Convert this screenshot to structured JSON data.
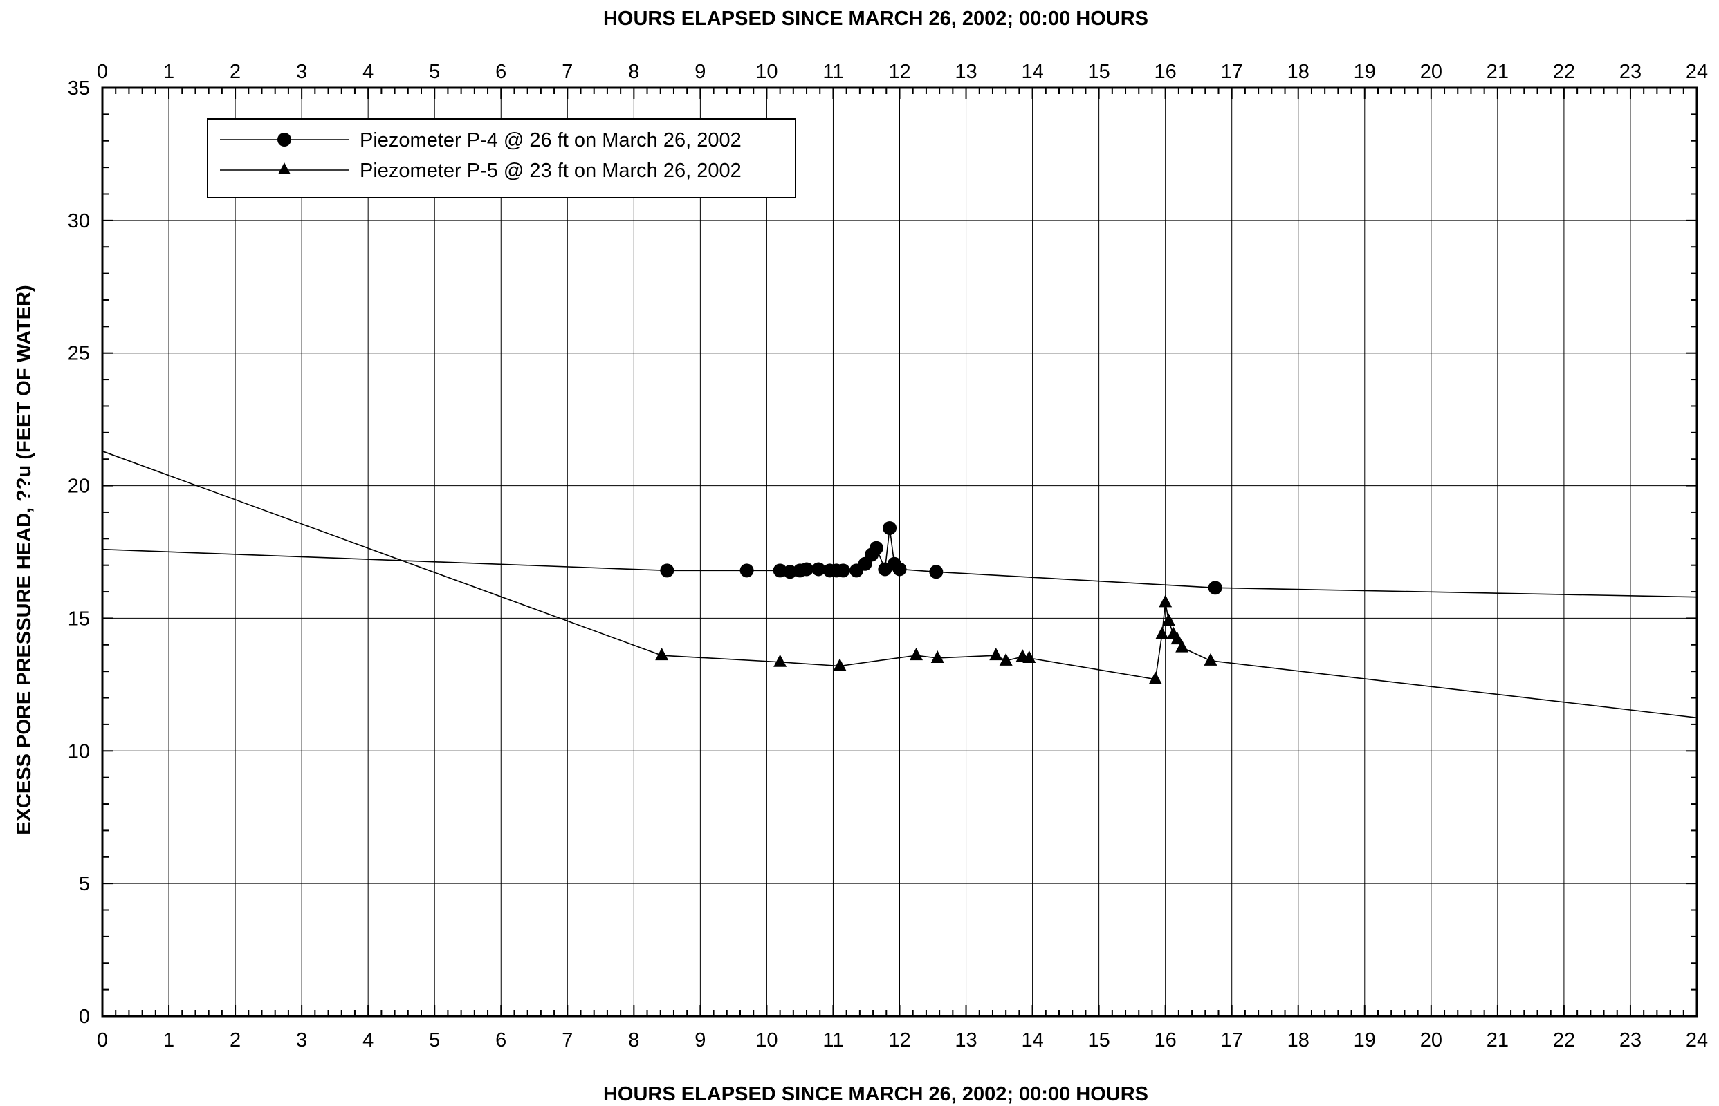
{
  "chart_data": {
    "type": "line",
    "top_xlabel": "HOURS ELAPSED SINCE MARCH 26, 2002; 00:00 HOURS",
    "xlabel": "HOURS ELAPSED SINCE MARCH 26, 2002; 00:00 HOURS",
    "ylabel": "EXCESS PORE PRESSURE HEAD, ??u (FEET OF WATER)",
    "xlim": [
      0,
      24
    ],
    "ylim": [
      0,
      35
    ],
    "x_ticks": [
      0,
      1,
      2,
      3,
      4,
      5,
      6,
      7,
      8,
      9,
      10,
      11,
      12,
      13,
      14,
      15,
      16,
      17,
      18,
      19,
      20,
      21,
      22,
      23,
      24
    ],
    "y_ticks": [
      0,
      5,
      10,
      15,
      20,
      25,
      30,
      35
    ],
    "grid": true,
    "legend_position": "top-left",
    "series": [
      {
        "name": "Piezometer P-4 @ 26 ft on March 26, 2002",
        "marker": "circle",
        "markers": [
          [
            8.5,
            16.8
          ],
          [
            9.7,
            16.8
          ],
          [
            10.2,
            16.8
          ],
          [
            10.35,
            16.75
          ],
          [
            10.5,
            16.8
          ],
          [
            10.6,
            16.85
          ],
          [
            10.78,
            16.85
          ],
          [
            10.95,
            16.8
          ],
          [
            11.05,
            16.8
          ],
          [
            11.15,
            16.8
          ],
          [
            11.35,
            16.8
          ],
          [
            11.48,
            17.05
          ],
          [
            11.58,
            17.4
          ],
          [
            11.65,
            17.65
          ],
          [
            11.78,
            16.85
          ],
          [
            11.85,
            18.4
          ],
          [
            11.92,
            17.05
          ],
          [
            12.0,
            16.85
          ],
          [
            12.55,
            16.75
          ],
          [
            16.75,
            16.15
          ]
        ],
        "line": [
          [
            0,
            17.6
          ],
          [
            8.5,
            16.8
          ],
          [
            9.7,
            16.8
          ],
          [
            10.2,
            16.8
          ],
          [
            10.35,
            16.75
          ],
          [
            10.5,
            16.8
          ],
          [
            10.6,
            16.85
          ],
          [
            10.78,
            16.85
          ],
          [
            10.95,
            16.8
          ],
          [
            11.05,
            16.8
          ],
          [
            11.15,
            16.8
          ],
          [
            11.35,
            16.8
          ],
          [
            11.48,
            17.05
          ],
          [
            11.58,
            17.4
          ],
          [
            11.65,
            17.65
          ],
          [
            11.78,
            16.85
          ],
          [
            11.85,
            18.4
          ],
          [
            11.92,
            17.05
          ],
          [
            12.0,
            16.85
          ],
          [
            12.55,
            16.75
          ],
          [
            16.75,
            16.15
          ],
          [
            24,
            15.8
          ]
        ]
      },
      {
        "name": "Piezometer P-5 @ 23 ft on March 26, 2002",
        "marker": "triangle",
        "markers": [
          [
            8.42,
            13.6
          ],
          [
            10.2,
            13.35
          ],
          [
            11.1,
            13.2
          ],
          [
            12.25,
            13.6
          ],
          [
            12.57,
            13.5
          ],
          [
            13.45,
            13.6
          ],
          [
            13.6,
            13.4
          ],
          [
            13.85,
            13.55
          ],
          [
            13.95,
            13.5
          ],
          [
            15.85,
            12.7
          ],
          [
            15.95,
            14.4
          ],
          [
            16.0,
            15.6
          ],
          [
            16.05,
            14.9
          ],
          [
            16.12,
            14.4
          ],
          [
            16.18,
            14.2
          ],
          [
            16.25,
            13.9
          ],
          [
            16.68,
            13.4
          ]
        ],
        "line": [
          [
            0,
            21.3
          ],
          [
            8.42,
            13.6
          ],
          [
            10.2,
            13.35
          ],
          [
            11.1,
            13.2
          ],
          [
            12.25,
            13.6
          ],
          [
            12.57,
            13.5
          ],
          [
            13.45,
            13.6
          ],
          [
            13.6,
            13.4
          ],
          [
            13.85,
            13.55
          ],
          [
            13.95,
            13.5
          ],
          [
            15.85,
            12.7
          ],
          [
            15.95,
            14.4
          ],
          [
            16.0,
            15.6
          ],
          [
            16.05,
            14.9
          ],
          [
            16.12,
            14.4
          ],
          [
            16.18,
            14.2
          ],
          [
            16.25,
            13.9
          ],
          [
            16.68,
            13.4
          ],
          [
            24,
            11.25
          ]
        ]
      }
    ]
  }
}
